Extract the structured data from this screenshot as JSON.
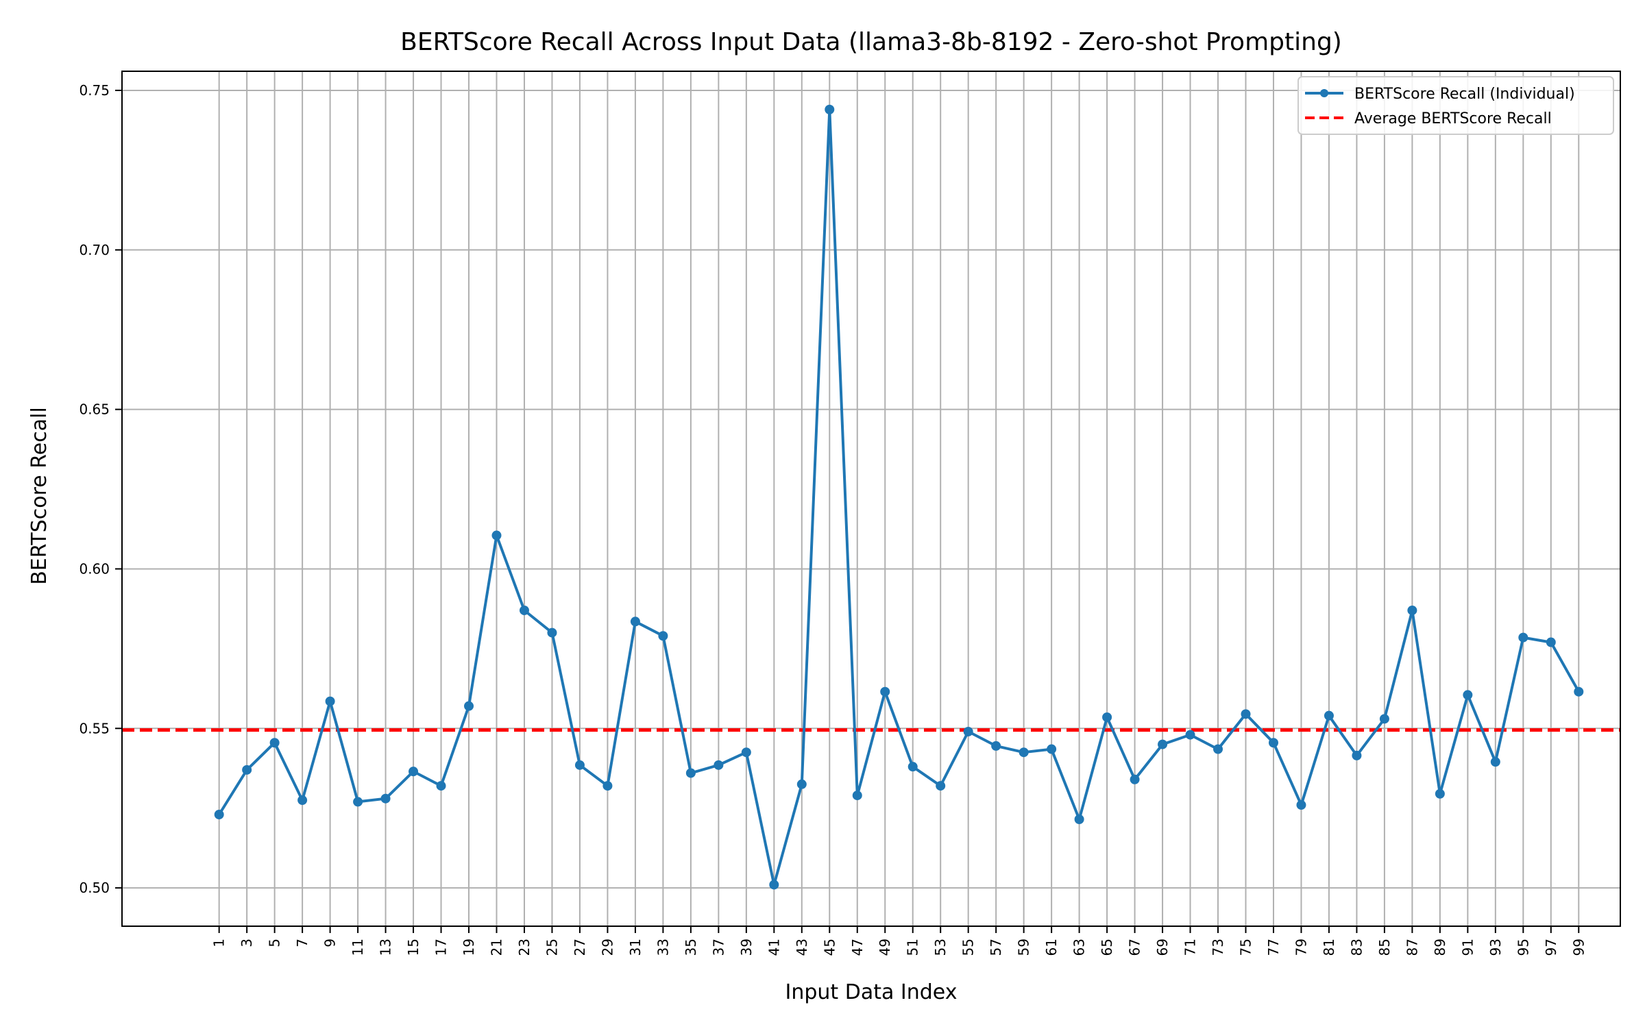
{
  "chart_data": {
    "type": "line",
    "title": "BERTScore Recall Across Input Data (llama3-8b-8192 - Zero-shot Prompting)",
    "xlabel": "Input Data Index",
    "ylabel": "BERTScore Recall",
    "x": [
      1,
      3,
      5,
      7,
      9,
      11,
      13,
      15,
      17,
      19,
      21,
      23,
      25,
      27,
      29,
      31,
      33,
      35,
      37,
      39,
      41,
      43,
      45,
      47,
      49,
      51,
      53,
      55,
      57,
      59,
      61,
      63,
      65,
      67,
      69,
      71,
      73,
      75,
      77,
      79,
      81,
      83,
      85,
      87,
      89,
      91,
      93,
      95,
      97,
      99
    ],
    "xticks": [
      "1",
      "3",
      "5",
      "7",
      "9",
      "11",
      "13",
      "15",
      "17",
      "19",
      "21",
      "23",
      "25",
      "27",
      "29",
      "31",
      "33",
      "35",
      "37",
      "39",
      "41",
      "43",
      "45",
      "47",
      "49",
      "51",
      "53",
      "55",
      "57",
      "59",
      "61",
      "63",
      "65",
      "67",
      "69",
      "71",
      "73",
      "75",
      "77",
      "79",
      "81",
      "83",
      "85",
      "87",
      "89",
      "91",
      "93",
      "95",
      "97",
      "99"
    ],
    "yticks": [
      "0.50",
      "0.55",
      "0.60",
      "0.65",
      "0.70",
      "0.75"
    ],
    "ylim": [
      0.488,
      0.756
    ],
    "xlim": [
      -6,
      102
    ],
    "grid": true,
    "legend_position": "top-right",
    "series": [
      {
        "name": "BERTScore Recall (Individual)",
        "color": "#1f77b4",
        "style": "solid-with-markers",
        "values": [
          0.523,
          0.537,
          0.5455,
          0.5275,
          0.5585,
          0.527,
          0.528,
          0.5365,
          0.532,
          0.557,
          0.6105,
          0.587,
          0.58,
          0.5385,
          0.532,
          0.5835,
          0.579,
          0.536,
          0.5385,
          0.5425,
          0.501,
          0.5325,
          0.744,
          0.529,
          0.5615,
          0.538,
          0.532,
          0.549,
          0.5445,
          0.5425,
          0.5435,
          0.5215,
          0.5535,
          0.534,
          0.545,
          0.548,
          0.5435,
          0.5545,
          0.5455,
          0.526,
          0.554,
          0.5415,
          0.553,
          0.587,
          0.5295,
          0.5605,
          0.5395,
          0.5785,
          0.577,
          0.5615
        ]
      },
      {
        "name": "Average BERTScore Recall",
        "color": "#ff0000",
        "style": "dashed",
        "value": 0.5495
      }
    ]
  }
}
